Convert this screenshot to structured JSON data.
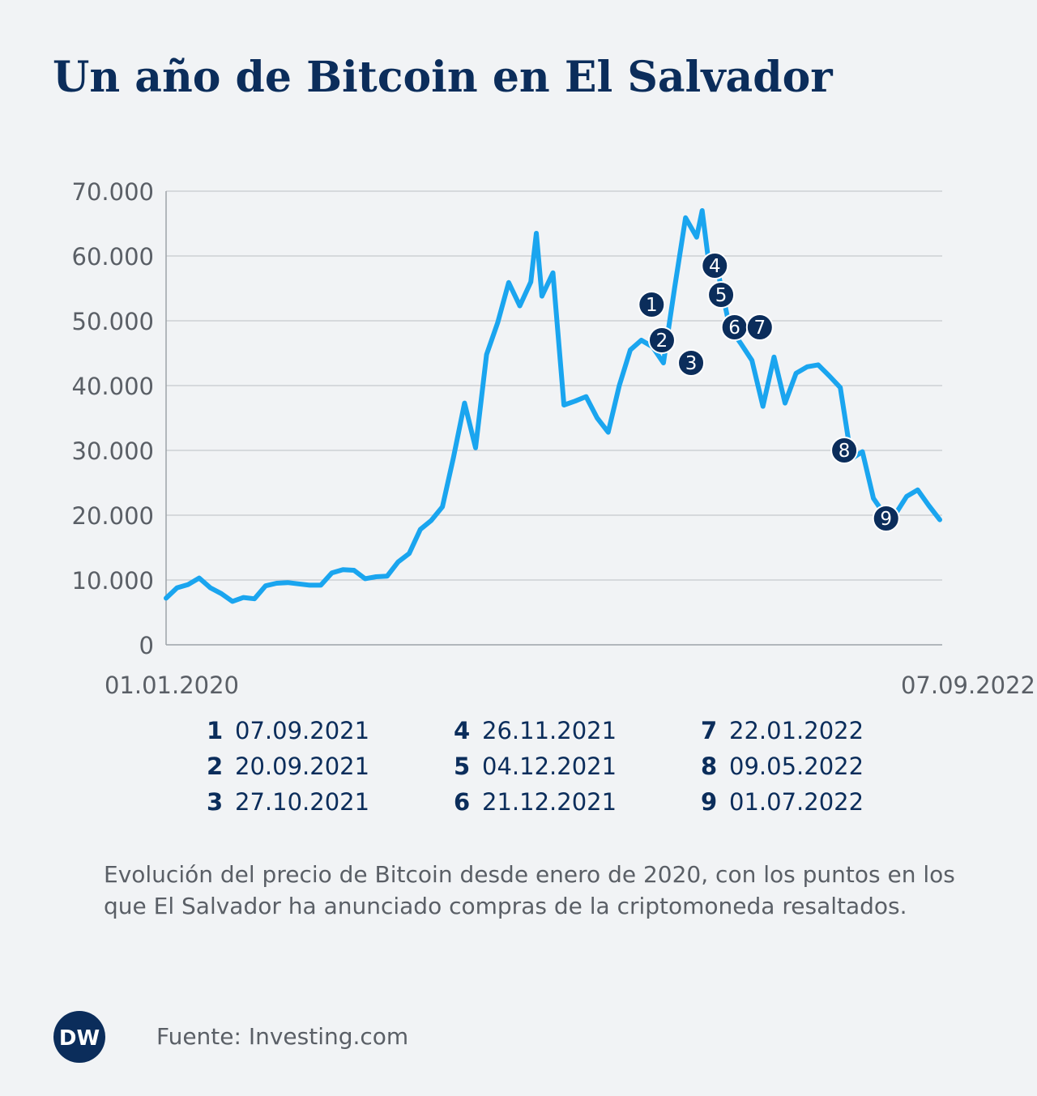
{
  "chart_data": {
    "type": "line",
    "title": "Un año de Bitcoin en El Salvador",
    "caption": "Evolución del precio de Bitcoin desde enero de 2020, con los puntos en los que El Salvador ha anunciado compras de la criptomoneda resaltados.",
    "source": "Fuente: Investing.com",
    "logo": "DW",
    "color": "#1aa5ef",
    "grid": true,
    "xlim": [
      "01.01.2020",
      "07.09.2022"
    ],
    "xticks": [
      "01.01.2020",
      "07.09.2022"
    ],
    "ylim": [
      0,
      70000
    ],
    "yticks": [
      0,
      {
        "value": 10000,
        "label": "10.000"
      },
      {
        "value": 20000,
        "label": "20.000"
      },
      {
        "value": 30000,
        "label": "30.000"
      },
      {
        "value": 40000,
        "label": "40.000"
      },
      {
        "value": 50000,
        "label": "50.000"
      },
      {
        "value": 60000,
        "label": "60.000"
      },
      {
        "value": 70000,
        "label": "70.000"
      }
    ],
    "x": [
      "01.01.2020",
      "15.01.2020",
      "29.01.2020",
      "12.02.2020",
      "26.02.2020",
      "11.03.2020",
      "25.03.2020",
      "08.04.2020",
      "22.04.2020",
      "06.05.2020",
      "20.05.2020",
      "03.06.2020",
      "17.06.2020",
      "01.07.2020",
      "15.07.2020",
      "29.07.2020",
      "12.08.2020",
      "26.08.2020",
      "09.09.2020",
      "23.09.2020",
      "07.10.2020",
      "21.10.2020",
      "04.11.2020",
      "18.11.2020",
      "02.12.2020",
      "16.12.2020",
      "30.12.2020",
      "13.01.2021",
      "27.01.2021",
      "10.02.2021",
      "24.02.2021",
      "10.03.2021",
      "24.03.2021",
      "07.04.2021",
      "14.04.2021",
      "21.04.2021",
      "05.05.2021",
      "19.05.2021",
      "02.06.2021",
      "16.06.2021",
      "30.06.2021",
      "14.07.2021",
      "28.07.2021",
      "11.08.2021",
      "25.08.2021",
      "08.09.2021",
      "22.09.2021",
      "06.10.2021",
      "20.10.2021",
      "03.11.2021",
      "10.11.2021",
      "17.11.2021",
      "01.12.2021",
      "15.12.2021",
      "29.12.2021",
      "12.01.2022",
      "26.01.2022",
      "09.02.2022",
      "23.02.2022",
      "09.03.2022",
      "23.03.2022",
      "06.04.2022",
      "20.04.2022",
      "04.05.2022",
      "18.05.2022",
      "01.06.2022",
      "15.06.2022",
      "29.06.2022",
      "13.07.2022",
      "27.07.2022",
      "10.08.2022",
      "24.08.2022",
      "07.09.2022"
    ],
    "values": [
      7200,
      8800,
      9300,
      10300,
      8800,
      7900,
      6700,
      7300,
      7100,
      9100,
      9500,
      9600,
      9400,
      9200,
      9200,
      11100,
      11600,
      11500,
      10200,
      10500,
      10600,
      12800,
      14100,
      17800,
      19200,
      21300,
      28900,
      37300,
      30400,
      44800,
      49700,
      55900,
      52300,
      56000,
      63500,
      53800,
      57400,
      37000,
      37600,
      38300,
      35000,
      32800,
      40000,
      45500,
      47000,
      46000,
      43500,
      55000,
      65900,
      62900,
      67000,
      60300,
      57000,
      48900,
      46500,
      43900,
      36800,
      44400,
      37300,
      41900,
      42900,
      43200,
      41500,
      39700,
      28700,
      29800,
      22600,
      20100,
      20200,
      22900,
      23900,
      21500,
      19300
    ],
    "annotations": [
      {
        "label": "1",
        "date": "07.09.2021",
        "value": 52500
      },
      {
        "label": "2",
        "date": "20.09.2021",
        "value": 47000
      },
      {
        "label": "3",
        "date": "27.10.2021",
        "value": 43500
      },
      {
        "label": "4",
        "date": "26.11.2021",
        "value": 58500
      },
      {
        "label": "5",
        "date": "04.12.2021",
        "value": 54000
      },
      {
        "label": "6",
        "date": "21.12.2021",
        "value": 49000
      },
      {
        "label": "7",
        "date": "22.01.2022",
        "value": 49000
      },
      {
        "label": "8",
        "date": "09.05.2022",
        "value": 30000
      },
      {
        "label": "9",
        "date": "01.07.2022",
        "value": 19500
      }
    ]
  }
}
